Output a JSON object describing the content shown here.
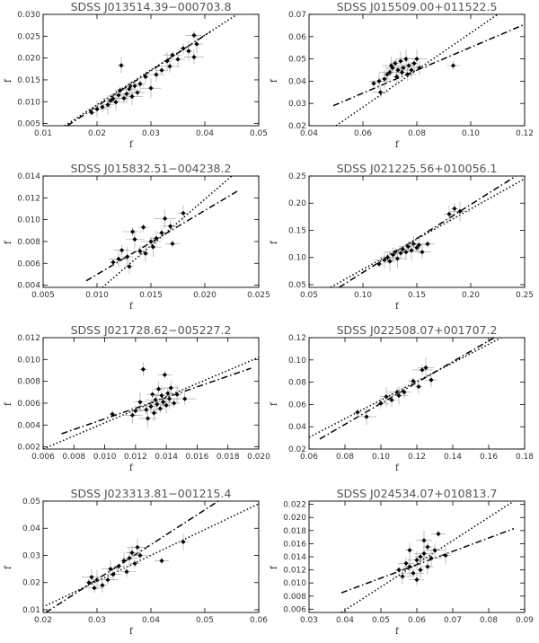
{
  "chart_data": [
    {
      "type": "scatter",
      "title": "SDSS J013514.39−000703.8",
      "xlabel": "f",
      "ylabel": "f",
      "xlim": [
        0.01,
        0.05
      ],
      "ylim": [
        0.0045,
        0.03
      ],
      "xticks": [
        "0.01",
        "0.02",
        "0.03",
        "0.04",
        "0.05"
      ],
      "yticks": [
        "0.005",
        "0.010",
        "0.015",
        "0.020",
        "0.025",
        "0.030"
      ],
      "points": [
        [
          0.019,
          0.0075
        ],
        [
          0.02,
          0.0083
        ],
        [
          0.021,
          0.0088
        ],
        [
          0.022,
          0.0093
        ],
        [
          0.0225,
          0.0102
        ],
        [
          0.023,
          0.0107
        ],
        [
          0.0235,
          0.0099
        ],
        [
          0.024,
          0.0115
        ],
        [
          0.0243,
          0.0126
        ],
        [
          0.0245,
          0.0183
        ],
        [
          0.025,
          0.0108
        ],
        [
          0.0255,
          0.0118
        ],
        [
          0.026,
          0.0129
        ],
        [
          0.0262,
          0.0136
        ],
        [
          0.0265,
          0.0112
        ],
        [
          0.027,
          0.0136
        ],
        [
          0.0275,
          0.0121
        ],
        [
          0.028,
          0.0141
        ],
        [
          0.029,
          0.0157
        ],
        [
          0.03,
          0.0131
        ],
        [
          0.031,
          0.0162
        ],
        [
          0.032,
          0.0172
        ],
        [
          0.033,
          0.0193
        ],
        [
          0.0335,
          0.0181
        ],
        [
          0.034,
          0.0207
        ],
        [
          0.035,
          0.0197
        ],
        [
          0.036,
          0.0222
        ],
        [
          0.037,
          0.0216
        ],
        [
          0.038,
          0.0202
        ],
        [
          0.038,
          0.0252
        ],
        [
          0.0385,
          0.0232
        ]
      ],
      "fits": [
        {
          "style": "dash-dot",
          "x": [
            0.0145,
            0.041
          ],
          "y": [
            0.0045,
            0.026
          ]
        },
        {
          "style": "dotted",
          "x": [
            0.014,
            0.046
          ],
          "y": [
            0.0045,
            0.03
          ]
        }
      ]
    },
    {
      "type": "scatter",
      "title": "SDSS J015509.00+011522.5",
      "xlabel": "f",
      "ylabel": "f",
      "xlim": [
        0.04,
        0.12
      ],
      "ylim": [
        0.02,
        0.07
      ],
      "xticks": [
        "0.04",
        "0.06",
        "0.08",
        "0.10",
        "0.12"
      ],
      "yticks": [
        "0.02",
        "0.03",
        "0.04",
        "0.05",
        "0.06",
        "0.07"
      ],
      "points": [
        [
          0.064,
          0.039
        ],
        [
          0.066,
          0.04
        ],
        [
          0.0665,
          0.035
        ],
        [
          0.068,
          0.041
        ],
        [
          0.069,
          0.043
        ],
        [
          0.07,
          0.044
        ],
        [
          0.0705,
          0.047
        ],
        [
          0.071,
          0.046
        ],
        [
          0.072,
          0.048
        ],
        [
          0.0725,
          0.042
        ],
        [
          0.073,
          0.045
        ],
        [
          0.074,
          0.049
        ],
        [
          0.0745,
          0.044
        ],
        [
          0.075,
          0.046
        ],
        [
          0.076,
          0.05
        ],
        [
          0.0765,
          0.043
        ],
        [
          0.077,
          0.047
        ],
        [
          0.078,
          0.045
        ],
        [
          0.079,
          0.048
        ],
        [
          0.08,
          0.05
        ],
        [
          0.081,
          0.046
        ],
        [
          0.0935,
          0.047
        ]
      ],
      "fits": [
        {
          "style": "dash-dot",
          "x": [
            0.049,
            0.12
          ],
          "y": [
            0.029,
            0.0655
          ]
        },
        {
          "style": "dotted",
          "x": [
            0.05,
            0.11
          ],
          "y": [
            0.02,
            0.07
          ]
        }
      ]
    },
    {
      "type": "scatter",
      "title": "SDSS J015832.51−004238.2",
      "xlabel": "f",
      "ylabel": "f",
      "xlim": [
        0.005,
        0.025
      ],
      "ylim": [
        0.0038,
        0.014
      ],
      "xticks": [
        "0.005",
        "0.010",
        "0.015",
        "0.020",
        "0.025"
      ],
      "yticks": [
        "0.004",
        "0.006",
        "0.008",
        "0.010",
        "0.012",
        "0.014"
      ],
      "points": [
        [
          0.0115,
          0.0061
        ],
        [
          0.012,
          0.0064
        ],
        [
          0.0123,
          0.0072
        ],
        [
          0.0128,
          0.0066
        ],
        [
          0.013,
          0.0057
        ],
        [
          0.0133,
          0.0089
        ],
        [
          0.0135,
          0.0082
        ],
        [
          0.014,
          0.0071
        ],
        [
          0.0143,
          0.0093
        ],
        [
          0.0145,
          0.0069
        ],
        [
          0.015,
          0.008
        ],
        [
          0.0152,
          0.0075
        ],
        [
          0.0155,
          0.0083
        ],
        [
          0.016,
          0.0088
        ],
        [
          0.0163,
          0.0101
        ],
        [
          0.0168,
          0.0094
        ],
        [
          0.017,
          0.0078
        ],
        [
          0.018,
          0.0106
        ]
      ],
      "fits": [
        {
          "style": "dash-dot",
          "x": [
            0.009,
            0.023
          ],
          "y": [
            0.0044,
            0.0126
          ]
        },
        {
          "style": "dotted",
          "x": [
            0.0105,
            0.0225
          ],
          "y": [
            0.0038,
            0.014
          ]
        }
      ]
    },
    {
      "type": "scatter",
      "title": "SDSS J021225.56+010056.1",
      "xlabel": "f",
      "ylabel": "f",
      "xlim": [
        0.05,
        0.25
      ],
      "ylim": [
        0.045,
        0.25
      ],
      "xticks": [
        "0.05",
        "0.10",
        "0.15",
        "0.20",
        "0.25"
      ],
      "yticks": [
        "0.05",
        "0.10",
        "0.15",
        "0.20",
        "0.25"
      ],
      "points": [
        [
          0.115,
          0.088
        ],
        [
          0.12,
          0.095
        ],
        [
          0.123,
          0.1
        ],
        [
          0.125,
          0.093
        ],
        [
          0.128,
          0.105
        ],
        [
          0.13,
          0.11
        ],
        [
          0.132,
          0.098
        ],
        [
          0.135,
          0.108
        ],
        [
          0.137,
          0.115
        ],
        [
          0.14,
          0.11
        ],
        [
          0.142,
          0.12
        ],
        [
          0.145,
          0.113
        ],
        [
          0.147,
          0.125
        ],
        [
          0.15,
          0.118
        ],
        [
          0.152,
          0.123
        ],
        [
          0.155,
          0.11
        ],
        [
          0.16,
          0.125
        ],
        [
          0.18,
          0.18
        ],
        [
          0.185,
          0.19
        ],
        [
          0.19,
          0.185
        ]
      ],
      "fits": [
        {
          "style": "dash-dot",
          "x": [
            0.078,
            0.242
          ],
          "y": [
            0.045,
            0.25
          ]
        },
        {
          "style": "dotted",
          "x": [
            0.07,
            0.25
          ],
          "y": [
            0.045,
            0.245
          ]
        }
      ]
    },
    {
      "type": "scatter",
      "title": "SDSS J021728.62−005227.2",
      "xlabel": "f",
      "ylabel": "f",
      "xlim": [
        0.006,
        0.02
      ],
      "ylim": [
        0.0018,
        0.012
      ],
      "xticks": [
        "0.006",
        "0.008",
        "0.010",
        "0.012",
        "0.014",
        "0.016",
        "0.018",
        "0.020"
      ],
      "yticks": [
        "0.002",
        "0.004",
        "0.006",
        "0.008",
        "0.010",
        "0.012"
      ],
      "points": [
        [
          0.0105,
          0.005
        ],
        [
          0.0118,
          0.0049
        ],
        [
          0.012,
          0.0053
        ],
        [
          0.0123,
          0.0061
        ],
        [
          0.0125,
          0.0091
        ],
        [
          0.0127,
          0.0054
        ],
        [
          0.0128,
          0.0046
        ],
        [
          0.013,
          0.0057
        ],
        [
          0.0131,
          0.0068
        ],
        [
          0.0132,
          0.0051
        ],
        [
          0.0133,
          0.0063
        ],
        [
          0.0134,
          0.0059
        ],
        [
          0.0135,
          0.0073
        ],
        [
          0.0136,
          0.0055
        ],
        [
          0.0137,
          0.0067
        ],
        [
          0.0138,
          0.0061
        ],
        [
          0.0139,
          0.0086
        ],
        [
          0.014,
          0.0058
        ],
        [
          0.0141,
          0.0069
        ],
        [
          0.0142,
          0.0064
        ],
        [
          0.0143,
          0.0074
        ],
        [
          0.0145,
          0.006
        ],
        [
          0.0147,
          0.0068
        ],
        [
          0.0152,
          0.0064
        ]
      ],
      "fits": [
        {
          "style": "dash-dot",
          "x": [
            0.0072,
            0.0195
          ],
          "y": [
            0.0032,
            0.0092
          ]
        },
        {
          "style": "dotted",
          "x": [
            0.006,
            0.02
          ],
          "y": [
            0.0018,
            0.0102
          ]
        }
      ]
    },
    {
      "type": "scatter",
      "title": "SDSS J022508.07+001707.2",
      "xlabel": "f",
      "ylabel": "f",
      "xlim": [
        0.06,
        0.18
      ],
      "ylim": [
        0.02,
        0.12
      ],
      "xticks": [
        "0.06",
        "0.08",
        "0.10",
        "0.12",
        "0.14",
        "0.16",
        "0.18"
      ],
      "yticks": [
        "0.02",
        "0.04",
        "0.06",
        "0.08",
        "0.10",
        "0.12"
      ],
      "points": [
        [
          0.087,
          0.053
        ],
        [
          0.092,
          0.049
        ],
        [
          0.1,
          0.061
        ],
        [
          0.103,
          0.067
        ],
        [
          0.106,
          0.064
        ],
        [
          0.109,
          0.071
        ],
        [
          0.11,
          0.068
        ],
        [
          0.113,
          0.071
        ],
        [
          0.118,
          0.081
        ],
        [
          0.121,
          0.076
        ],
        [
          0.123,
          0.091
        ],
        [
          0.125,
          0.093
        ],
        [
          0.128,
          0.082
        ]
      ],
      "fits": [
        {
          "style": "dash-dot",
          "x": [
            0.066,
            0.163
          ],
          "y": [
            0.029,
            0.12
          ]
        },
        {
          "style": "dotted",
          "x": [
            0.06,
            0.167
          ],
          "y": [
            0.0305,
            0.12
          ]
        }
      ]
    },
    {
      "type": "scatter",
      "title": "SDSS J023313.81−001215.4",
      "xlabel": "f",
      "ylabel": "f",
      "xlim": [
        0.02,
        0.06
      ],
      "ylim": [
        0.009,
        0.05
      ],
      "xticks": [
        "0.02",
        "0.03",
        "0.04",
        "0.05",
        "0.06"
      ],
      "yticks": [
        "0.01",
        "0.02",
        "0.03",
        "0.04",
        "0.05"
      ],
      "points": [
        [
          0.0285,
          0.02
        ],
        [
          0.029,
          0.022
        ],
        [
          0.0295,
          0.018
        ],
        [
          0.03,
          0.021
        ],
        [
          0.031,
          0.019
        ],
        [
          0.032,
          0.021
        ],
        [
          0.0325,
          0.025
        ],
        [
          0.033,
          0.023
        ],
        [
          0.034,
          0.026
        ],
        [
          0.035,
          0.028
        ],
        [
          0.0355,
          0.024
        ],
        [
          0.036,
          0.029
        ],
        [
          0.0365,
          0.031
        ],
        [
          0.037,
          0.027
        ],
        [
          0.0375,
          0.033
        ],
        [
          0.038,
          0.03
        ],
        [
          0.042,
          0.028
        ],
        [
          0.046,
          0.035
        ]
      ],
      "fits": [
        {
          "style": "dash-dot",
          "x": [
            0.0205,
            0.0525
          ],
          "y": [
            0.009,
            0.05
          ]
        },
        {
          "style": "dotted",
          "x": [
            0.0205,
            0.06
          ],
          "y": [
            0.0115,
            0.049
          ]
        }
      ]
    },
    {
      "type": "scatter",
      "title": "SDSS J024534.07+010813.7",
      "xlabel": "f",
      "ylabel": "f",
      "xlim": [
        0.03,
        0.09
      ],
      "ylim": [
        0.0055,
        0.0225
      ],
      "xticks": [
        "0.03",
        "0.04",
        "0.05",
        "0.06",
        "0.07",
        "0.08",
        "0.09"
      ],
      "yticks": [
        "0.006",
        "0.008",
        "0.010",
        "0.012",
        "0.014",
        "0.016",
        "0.018",
        "0.020",
        "0.022"
      ],
      "points": [
        [
          0.055,
          0.012
        ],
        [
          0.056,
          0.011
        ],
        [
          0.057,
          0.013
        ],
        [
          0.058,
          0.0125
        ],
        [
          0.058,
          0.015
        ],
        [
          0.059,
          0.0115
        ],
        [
          0.06,
          0.0135
        ],
        [
          0.06,
          0.0105
        ],
        [
          0.061,
          0.014
        ],
        [
          0.061,
          0.012
        ],
        [
          0.062,
          0.0145
        ],
        [
          0.062,
          0.0165
        ],
        [
          0.063,
          0.0125
        ],
        [
          0.063,
          0.0155
        ],
        [
          0.064,
          0.0138
        ],
        [
          0.065,
          0.015
        ],
        [
          0.066,
          0.0175
        ],
        [
          0.068,
          0.0142
        ]
      ],
      "fits": [
        {
          "style": "dash-dot",
          "x": [
            0.039,
            0.087
          ],
          "y": [
            0.0085,
            0.0183
          ]
        },
        {
          "style": "dotted",
          "x": [
            0.039,
            0.087
          ],
          "y": [
            0.0055,
            0.0225
          ]
        }
      ]
    }
  ]
}
